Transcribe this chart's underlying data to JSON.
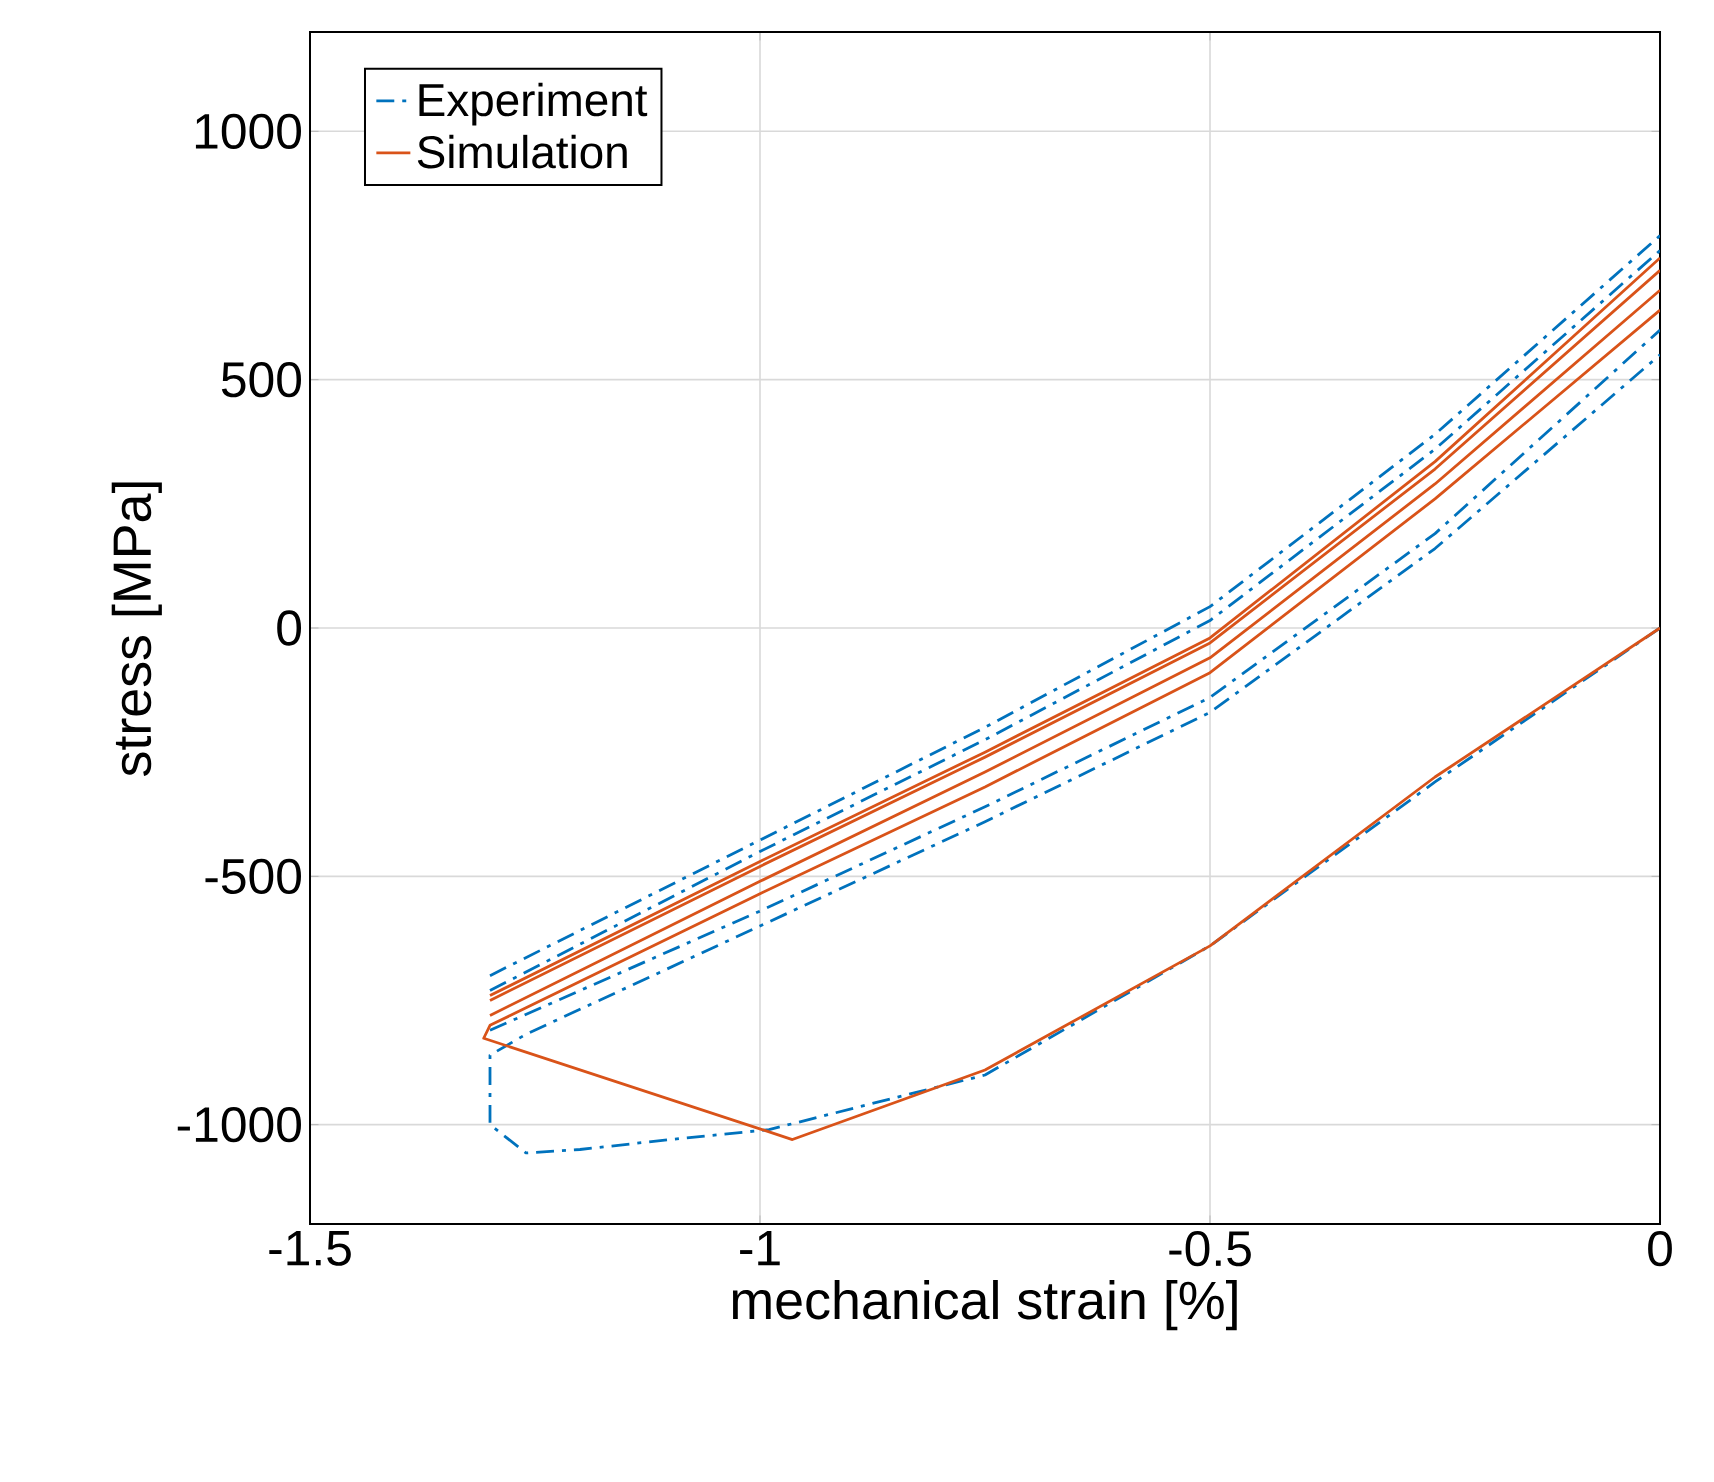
{
  "chart_data": {
    "type": "line",
    "xlabel": "mechanical strain [%]",
    "ylabel": "stress [MPa]",
    "xlim": [
      -1.5,
      0
    ],
    "ylim": [
      -1200,
      1200
    ],
    "xticks": [
      -1.5,
      -1,
      -0.5,
      0
    ],
    "yticks": [
      -1000,
      -500,
      0,
      500,
      1000
    ],
    "grid": true,
    "legend": "top left",
    "series": [
      {
        "name": "Experiment",
        "color": "#0072bd",
        "line_style": "dashdot",
        "x": [
          0,
          -0.25,
          -0.5,
          -0.75,
          -0.99,
          -1.1,
          -1.2,
          -1.26,
          -1.3,
          -1.3,
          -1.26,
          -1.0,
          -0.75,
          -0.5,
          -0.25,
          0
        ],
        "values": [
          0,
          -310,
          -640,
          -900,
          -1010,
          -1030,
          -1050,
          -1057,
          -1000,
          -860,
          -818,
          -600,
          -390,
          -170,
          160,
          550
        ]
      },
      {
        "color": "#0072bd",
        "line_style": "dashdot",
        "x": [
          -1.3,
          -1,
          -0.75,
          -0.5,
          -0.25,
          0
        ],
        "values": [
          -810,
          -570,
          -360,
          -140,
          190,
          600
        ]
      },
      {
        "color": "#0072bd",
        "line_style": "dashdot",
        "x": [
          -1.3,
          -1,
          -0.75,
          -0.5,
          -0.25,
          0
        ],
        "values": [
          -730,
          -450,
          -225,
          15,
          360,
          760
        ]
      },
      {
        "color": "#0072bd",
        "line_style": "dashdot",
        "x": [
          -1.3,
          -1,
          -0.75,
          -0.5,
          -0.25,
          0
        ],
        "values": [
          -700,
          -427,
          -200,
          43,
          390,
          790
        ]
      },
      {
        "name": "Simulation",
        "color": "#d95319",
        "line_style": "solid",
        "x": [
          0,
          -0.25,
          -0.5,
          -0.75,
          -0.964,
          -1.307,
          -1.3,
          -1,
          -0.75,
          -0.5,
          -0.25,
          0
        ],
        "values": [
          0,
          -300,
          -640,
          -890,
          -1030,
          -826,
          -800,
          -535,
          -320,
          -90,
          260,
          640
        ]
      },
      {
        "color": "#d95319",
        "line_style": "solid",
        "x": [
          -1.3,
          -1,
          -0.75,
          -0.5,
          -0.25,
          0
        ],
        "values": [
          -780,
          -510,
          -290,
          -60,
          290,
          680
        ]
      },
      {
        "color": "#d95319",
        "line_style": "solid",
        "x": [
          -1.3,
          -1,
          -0.75,
          -0.5,
          -0.25,
          0
        ],
        "values": [
          -750,
          -480,
          -260,
          -30,
          320,
          720
        ]
      },
      {
        "color": "#d95319",
        "line_style": "solid",
        "x": [
          -1.3,
          -1,
          -0.75,
          -0.5,
          -0.25,
          0
        ],
        "values": [
          -740,
          -470,
          -250,
          -20,
          335,
          745
        ]
      }
    ]
  }
}
